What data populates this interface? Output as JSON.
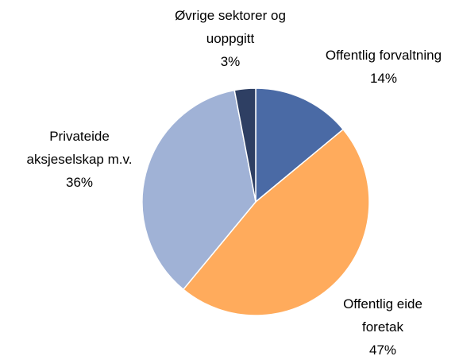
{
  "chart_data": {
    "type": "pie",
    "categories": [
      "Offentlig forvaltning",
      "Offentlig eide foretak",
      "Privateide aksjeselskap m.v.",
      "Øvrige sektorer og uoppgitt"
    ],
    "values": [
      14,
      47,
      36,
      3
    ],
    "value_labels": [
      "14%",
      "47%",
      "36%",
      "3%"
    ],
    "colors": [
      "#4a6aa5",
      "#ffab5c",
      "#a0b2d6",
      "#2e3f63"
    ]
  }
}
